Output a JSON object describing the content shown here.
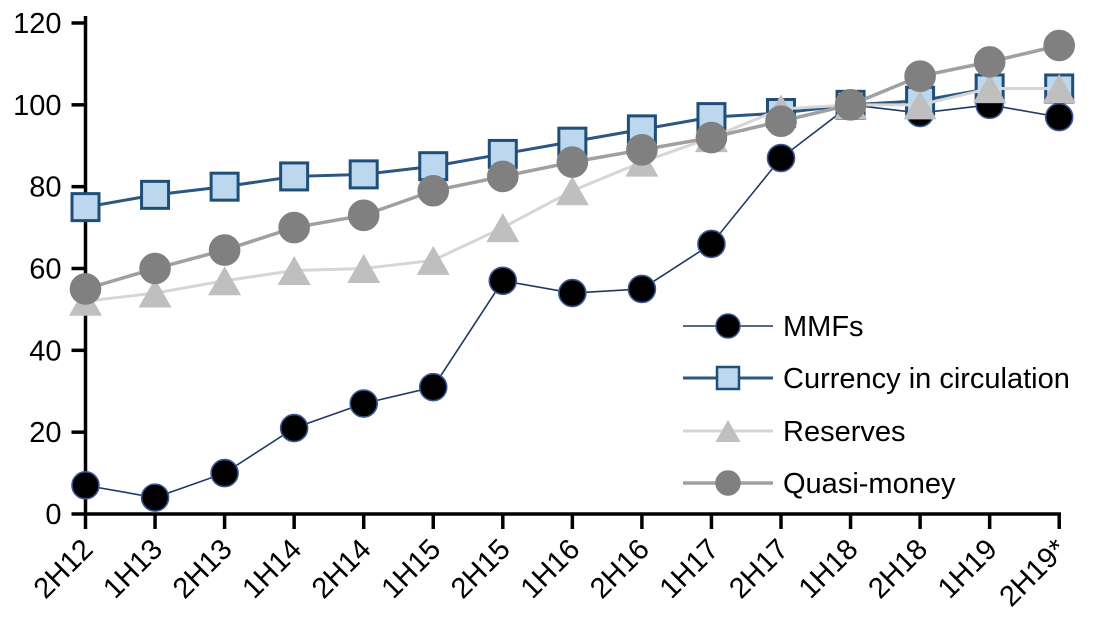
{
  "chart_data": {
    "type": "line",
    "title": "",
    "xlabel": "",
    "ylabel": "",
    "categories": [
      "2H12",
      "1H13",
      "2H13",
      "1H14",
      "2H14",
      "1H15",
      "2H15",
      "1H16",
      "2H16",
      "1H17",
      "2H17",
      "1H18",
      "2H18",
      "1H19",
      "2H19*"
    ],
    "series": [
      {
        "name": "MMFs",
        "marker": "circle",
        "marker_color": "#000000",
        "marker_border": "#3A5795",
        "line_color": "#1F3864",
        "values": [
          7,
          4,
          10,
          21,
          27,
          31,
          57,
          54,
          55,
          66,
          87,
          100,
          98,
          100,
          97
        ]
      },
      {
        "name": "Currency in circulation",
        "marker": "square",
        "marker_color": "#BDD7EE",
        "marker_border": "#1F4E79",
        "line_color": "#2A5783",
        "values": [
          75,
          78,
          80,
          82.5,
          83,
          85,
          88,
          91,
          94,
          97,
          98,
          100,
          101,
          104,
          104
        ]
      },
      {
        "name": "Reserves",
        "marker": "triangle",
        "marker_color": "#BFBFBF",
        "marker_border": "#BFBFBF",
        "line_color": "#D6D6D6",
        "values": [
          52,
          54,
          57,
          59.5,
          60,
          62,
          70,
          79,
          86,
          92,
          99,
          100,
          100,
          104,
          104
        ]
      },
      {
        "name": "Quasi-money",
        "marker": "circle",
        "marker_color": "#808080",
        "marker_border": "#808080",
        "line_color": "#A0A0A0",
        "values": [
          55,
          60,
          64.5,
          70,
          73,
          79,
          82.5,
          86,
          89,
          92,
          96,
          100,
          107,
          110.5,
          114.5
        ]
      }
    ],
    "ylim": [
      0,
      120
    ],
    "yticks": [
      0,
      20,
      40,
      60,
      80,
      100,
      120
    ],
    "grid": false,
    "axis_color": "#000000",
    "legend_position": "inside-right",
    "legend_labels": [
      "MMFs",
      "Currency in circulation",
      "Reserves",
      "Quasi-money"
    ]
  }
}
